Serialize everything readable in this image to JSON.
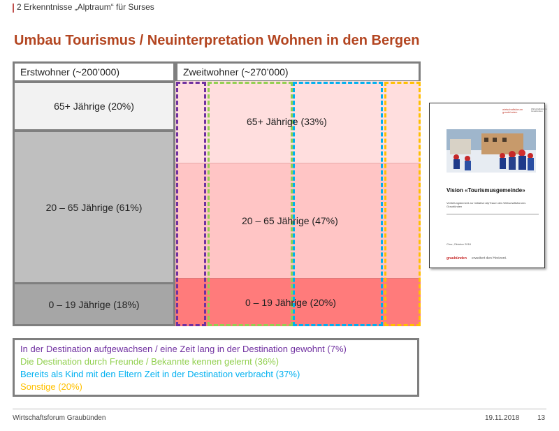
{
  "header": {
    "section_title": "2 Erkenntnisse „Alptraum“ für Surses",
    "slide_title": "Umbau Tourismus / Neuinterpretation Wohnen in den Bergen"
  },
  "diagram": {
    "erstwohner": {
      "label": "Erstwohner (~200’000)",
      "segments": [
        {
          "label": "65+ Jährige (20%)",
          "color": "#f2f2f2"
        },
        {
          "label": "20 – 65 Jährige (61%)",
          "color": "#bfbfbf"
        },
        {
          "label": "0 – 19 Jährige (18%)",
          "color": "#a6a6a6"
        }
      ]
    },
    "zweitwohner": {
      "label": "Zweitwohner (~270’000)",
      "segments": [
        {
          "label": "65+ Jährige (33%)",
          "color": "#ffdede"
        },
        {
          "label": "20 – 65 Jährige (47%)",
          "color": "#ffc5c5"
        },
        {
          "label": "0 – 19 Jährige (20%)",
          "color": "#ff7b7b"
        }
      ]
    },
    "group_colors": {
      "aufgewachsen": "#7030a0",
      "freunde": "#92d050",
      "kind": "#00b0f0",
      "sonstige": "#ffc000"
    }
  },
  "legend": {
    "items": [
      {
        "text": "In der Destination aufgewachsen / eine Zeit lang in der Destination gewohnt (7%)",
        "color": "#7030a0"
      },
      {
        "text": "Die Destination durch Freunde / Bekannte kennen gelernt (36%)",
        "color": "#92d050"
      },
      {
        "text": "Bereits als Kind mit den Eltern Zeit in der Destination verbracht (37%)",
        "color": "#00b0f0"
      },
      {
        "text": "Sonstige (20%)",
        "color": "#ffc000"
      }
    ]
  },
  "report": {
    "logo_text": "wirtschaftsforum graubünden",
    "logo_side": "Wirtschaftsforum Graubünden",
    "title": "Vision «Tourismusgemeinde»",
    "subtitle": "Vertiefungsbericht zur Initiative AlpTraum des Wirtschaftsforums Graubünden",
    "date": "Chur, Oktober 2018",
    "brand": "graubünden",
    "slogan": "erweitert den Horizont."
  },
  "footer": {
    "left": "Wirtschaftsforum Graubünden",
    "date": "19.11.2018",
    "page": "13"
  }
}
